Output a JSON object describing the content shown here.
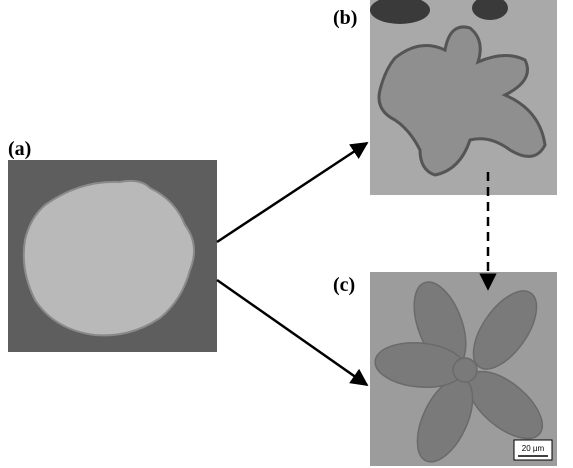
{
  "panels": [
    {
      "label": "(a)"
    },
    {
      "label": "(b)"
    },
    {
      "label": "(c)",
      "scale_bar": "20 µm"
    }
  ]
}
